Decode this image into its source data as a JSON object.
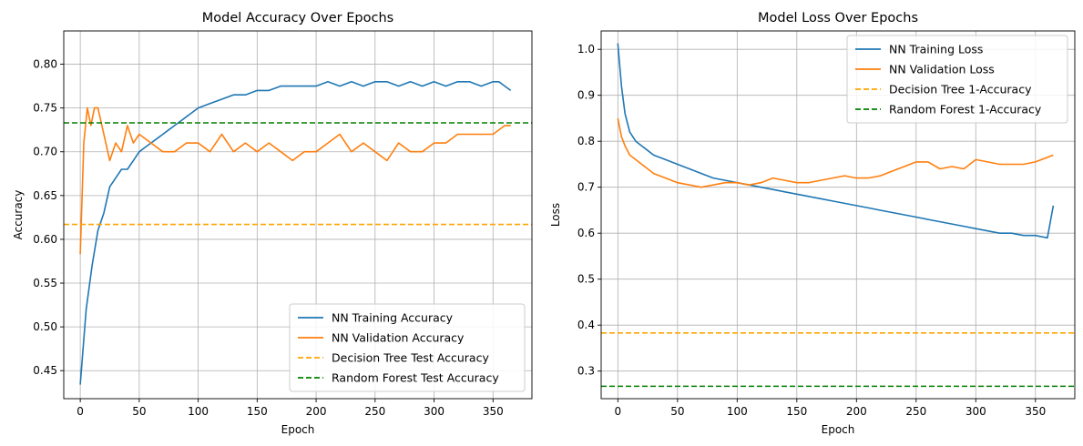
{
  "chart_data": [
    {
      "type": "line",
      "title": "Model Accuracy Over Epochs",
      "xlabel": "Epoch",
      "ylabel": "Accuracy",
      "xlim": [
        -14,
        383
      ],
      "ylim": [
        0.418,
        0.838
      ],
      "xticks": [
        0,
        50,
        100,
        150,
        200,
        250,
        300,
        350
      ],
      "yticks": [
        0.45,
        0.5,
        0.55,
        0.6,
        0.65,
        0.7,
        0.75,
        0.8
      ],
      "ytick_labels": [
        "0.45",
        "0.50",
        "0.55",
        "0.60",
        "0.65",
        "0.70",
        "0.75",
        "0.80"
      ],
      "grid": true,
      "legend_position": "lower-right",
      "series": [
        {
          "name": "NN Training Accuracy",
          "color": "#1f77b4",
          "style": "solid",
          "x": [
            0,
            5,
            10,
            15,
            20,
            25,
            30,
            35,
            40,
            45,
            50,
            55,
            60,
            65,
            70,
            75,
            80,
            85,
            90,
            95,
            100,
            110,
            120,
            130,
            140,
            150,
            160,
            170,
            180,
            190,
            200,
            210,
            220,
            230,
            240,
            250,
            260,
            270,
            280,
            290,
            300,
            310,
            320,
            330,
            340,
            350,
            355,
            360,
            365
          ],
          "y": [
            0.434,
            0.52,
            0.57,
            0.61,
            0.63,
            0.66,
            0.67,
            0.68,
            0.68,
            0.69,
            0.7,
            0.705,
            0.71,
            0.715,
            0.72,
            0.725,
            0.73,
            0.735,
            0.74,
            0.745,
            0.75,
            0.755,
            0.76,
            0.765,
            0.765,
            0.77,
            0.77,
            0.775,
            0.775,
            0.775,
            0.775,
            0.78,
            0.775,
            0.78,
            0.775,
            0.78,
            0.78,
            0.775,
            0.78,
            0.775,
            0.78,
            0.775,
            0.78,
            0.78,
            0.775,
            0.78,
            0.78,
            0.775,
            0.77
          ]
        },
        {
          "name": "NN Validation Accuracy",
          "color": "#ff7f0e",
          "style": "solid",
          "x": [
            0,
            3,
            6,
            9,
            12,
            15,
            20,
            25,
            30,
            35,
            40,
            45,
            50,
            60,
            70,
            80,
            90,
            100,
            110,
            120,
            130,
            140,
            150,
            160,
            170,
            180,
            190,
            200,
            210,
            220,
            230,
            240,
            250,
            260,
            270,
            280,
            290,
            300,
            310,
            320,
            330,
            340,
            350,
            360,
            365
          ],
          "y": [
            0.583,
            0.71,
            0.75,
            0.73,
            0.75,
            0.75,
            0.72,
            0.69,
            0.71,
            0.7,
            0.73,
            0.71,
            0.72,
            0.71,
            0.7,
            0.7,
            0.71,
            0.71,
            0.7,
            0.72,
            0.7,
            0.71,
            0.7,
            0.71,
            0.7,
            0.69,
            0.7,
            0.7,
            0.71,
            0.72,
            0.7,
            0.71,
            0.7,
            0.69,
            0.71,
            0.7,
            0.7,
            0.71,
            0.71,
            0.72,
            0.72,
            0.72,
            0.72,
            0.73,
            0.73
          ]
        },
        {
          "name": "Decision Tree Test Accuracy",
          "color": "#ffa500",
          "style": "dashed",
          "hline": 0.617
        },
        {
          "name": "Random Forest Test Accuracy",
          "color": "#008000",
          "style": "dashed",
          "hline": 0.733
        }
      ]
    },
    {
      "type": "line",
      "title": "Model Loss Over Epochs",
      "xlabel": "Epoch",
      "ylabel": "Loss",
      "xlim": [
        -14,
        383
      ],
      "ylim": [
        0.24,
        1.04
      ],
      "xticks": [
        0,
        50,
        100,
        150,
        200,
        250,
        300,
        350
      ],
      "yticks": [
        0.3,
        0.4,
        0.5,
        0.6,
        0.7,
        0.8,
        0.9,
        1.0
      ],
      "ytick_labels": [
        "0.3",
        "0.4",
        "0.5",
        "0.6",
        "0.7",
        "0.8",
        "0.9",
        "1.0"
      ],
      "grid": true,
      "legend_position": "upper-right",
      "series": [
        {
          "name": "NN Training Loss",
          "color": "#1f77b4",
          "style": "solid",
          "x": [
            0,
            3,
            6,
            10,
            15,
            20,
            25,
            30,
            40,
            50,
            60,
            70,
            80,
            90,
            100,
            110,
            120,
            130,
            140,
            150,
            160,
            170,
            180,
            190,
            200,
            210,
            220,
            230,
            240,
            250,
            260,
            270,
            280,
            290,
            300,
            310,
            320,
            330,
            340,
            350,
            360,
            365
          ],
          "y": [
            1.013,
            0.92,
            0.86,
            0.82,
            0.8,
            0.79,
            0.78,
            0.77,
            0.76,
            0.75,
            0.74,
            0.73,
            0.72,
            0.715,
            0.71,
            0.705,
            0.7,
            0.695,
            0.69,
            0.685,
            0.68,
            0.675,
            0.67,
            0.665,
            0.66,
            0.655,
            0.65,
            0.645,
            0.64,
            0.635,
            0.63,
            0.625,
            0.62,
            0.615,
            0.61,
            0.605,
            0.6,
            0.6,
            0.595,
            0.595,
            0.59,
            0.66
          ]
        },
        {
          "name": "NN Validation Loss",
          "color": "#ff7f0e",
          "style": "solid",
          "x": [
            0,
            3,
            6,
            10,
            15,
            20,
            25,
            30,
            40,
            50,
            60,
            70,
            80,
            90,
            100,
            110,
            120,
            130,
            140,
            150,
            160,
            170,
            180,
            190,
            200,
            210,
            220,
            230,
            240,
            250,
            260,
            270,
            280,
            290,
            300,
            310,
            320,
            330,
            340,
            350,
            360,
            365
          ],
          "y": [
            0.85,
            0.81,
            0.79,
            0.77,
            0.76,
            0.75,
            0.74,
            0.73,
            0.72,
            0.71,
            0.705,
            0.7,
            0.705,
            0.71,
            0.71,
            0.705,
            0.71,
            0.72,
            0.715,
            0.71,
            0.71,
            0.715,
            0.72,
            0.725,
            0.72,
            0.72,
            0.725,
            0.735,
            0.745,
            0.755,
            0.755,
            0.74,
            0.745,
            0.74,
            0.76,
            0.755,
            0.75,
            0.75,
            0.75,
            0.755,
            0.765,
            0.77
          ]
        },
        {
          "name": "Decision Tree 1-Accuracy",
          "color": "#ffa500",
          "style": "dashed",
          "hline": 0.383
        },
        {
          "name": "Random Forest 1-Accuracy",
          "color": "#008000",
          "style": "dashed",
          "hline": 0.267
        }
      ]
    }
  ]
}
